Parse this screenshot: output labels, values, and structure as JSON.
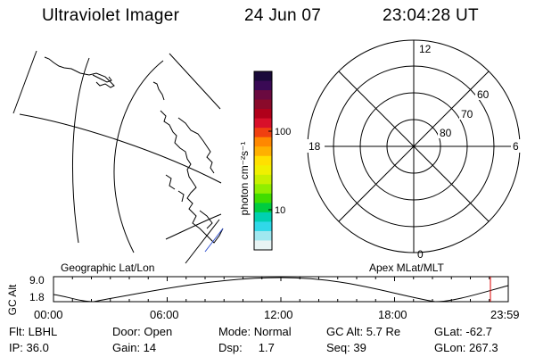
{
  "header": {
    "title": "Ultraviolet Imager",
    "date": "24 Jun 07",
    "time": "23:04:28 UT"
  },
  "colorbar": {
    "label": "photon cm⁻²s⁻¹",
    "ticks": [
      "100",
      "10"
    ],
    "colors": [
      "#1a0a3a",
      "#3a0a55",
      "#6a0a40",
      "#8a0a2a",
      "#b0001a",
      "#d8102a",
      "#f04010",
      "#ff8800",
      "#ffb000",
      "#ffe000",
      "#f0f000",
      "#c8f000",
      "#90ee00",
      "#40dd00",
      "#00cc40",
      "#00d0b0",
      "#30d8e8",
      "#a0e8f0",
      "#e8f4f4"
    ]
  },
  "polar_plot": {
    "mlt_labels": {
      "top": "12",
      "left": "18",
      "right": "6",
      "bottom": "0"
    },
    "lat_labels": [
      "60",
      "70",
      "80"
    ]
  },
  "timeline": {
    "y_axis_label": "GC Alt",
    "y_ticks": [
      "9.0",
      "1.8"
    ],
    "left_title": "Geographic Lat/Lon",
    "right_title": "Apex MLat/MLT",
    "time_ticks": [
      "00:00",
      "06:00",
      "12:00",
      "18:00",
      "23:59"
    ],
    "current_marker_time": "23:04"
  },
  "info": {
    "row1": [
      "Flt: LBHL",
      "Door: Open",
      "Mode: Normal",
      "GC Alt: 5.7 Re",
      "GLat: -62.7"
    ],
    "row2": [
      "IP: 36.0",
      "Gain: 14",
      "Dsp:     1.7",
      "Seq: 39",
      "GLon: 267.3"
    ]
  },
  "colors": {
    "marker": "#dd0000",
    "coast": "#000000",
    "accent_blue": "#3050d0"
  }
}
